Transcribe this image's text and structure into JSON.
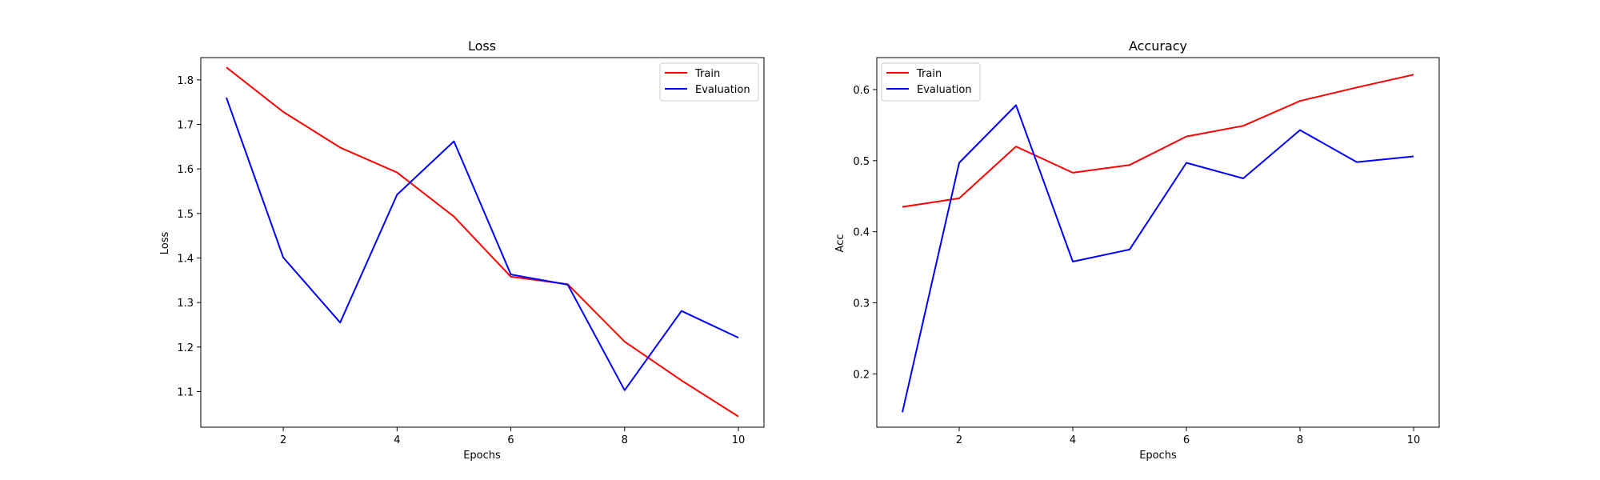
{
  "chart_data": [
    {
      "type": "line",
      "title": "Loss",
      "xlabel": "Epochs",
      "ylabel": "Loss",
      "x": [
        1,
        2,
        3,
        4,
        5,
        6,
        7,
        8,
        9,
        10
      ],
      "xlim": [
        0.55,
        10.45
      ],
      "ylim": [
        1.02,
        1.85
      ],
      "xticks": [
        "2",
        "4",
        "6",
        "8",
        "10"
      ],
      "yticks": [
        "1.1",
        "1.2",
        "1.3",
        "1.4",
        "1.5",
        "1.6",
        "1.7",
        "1.8"
      ],
      "series": [
        {
          "name": "Train",
          "color": "#ff0000",
          "values": [
            1.828,
            1.728,
            1.648,
            1.592,
            1.493,
            1.358,
            1.341,
            1.212,
            1.125,
            1.044
          ]
        },
        {
          "name": "Evaluation",
          "color": "#0000ff",
          "values": [
            1.76,
            1.401,
            1.255,
            1.542,
            1.662,
            1.363,
            1.34,
            1.103,
            1.281,
            1.221
          ]
        }
      ],
      "legend": "top-right",
      "grid": false
    },
    {
      "type": "line",
      "title": "Accuracy",
      "xlabel": "Epochs",
      "ylabel": "Acc",
      "x": [
        1,
        2,
        3,
        4,
        5,
        6,
        7,
        8,
        9,
        10
      ],
      "xlim": [
        0.55,
        10.45
      ],
      "ylim": [
        0.125,
        0.645
      ],
      "xticks": [
        "2",
        "4",
        "6",
        "8",
        "10"
      ],
      "yticks": [
        "0.2",
        "0.3",
        "0.4",
        "0.5",
        "0.6"
      ],
      "series": [
        {
          "name": "Train",
          "color": "#ff0000",
          "values": [
            0.435,
            0.447,
            0.52,
            0.483,
            0.494,
            0.534,
            0.549,
            0.584,
            0.603,
            0.621
          ]
        },
        {
          "name": "Evaluation",
          "color": "#0000ff",
          "values": [
            0.146,
            0.497,
            0.578,
            0.358,
            0.375,
            0.497,
            0.475,
            0.543,
            0.498,
            0.506
          ]
        }
      ],
      "legend": "top-left",
      "grid": false
    }
  ]
}
